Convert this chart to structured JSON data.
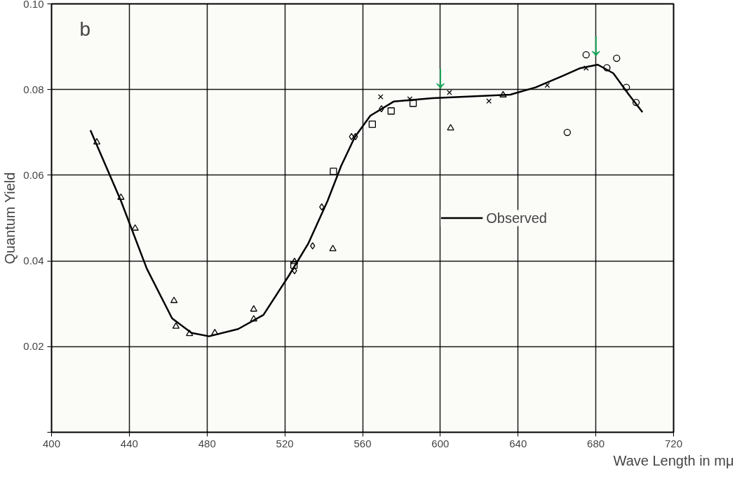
{
  "chart_data": {
    "type": "scatter",
    "xlabel": "Wave Length in mμ",
    "ylabel": "Quantum Yield",
    "xlim": [
      400,
      720
    ],
    "xticks": [
      400,
      440,
      480,
      520,
      560,
      600,
      640,
      680,
      720
    ],
    "ylim": [
      0,
      0.1
    ],
    "yticks": [
      {
        "value": 0,
        "label": null
      },
      0.02,
      0.04,
      0.06,
      0.08,
      {
        "value": 0.1,
        "label": "0.10"
      }
    ],
    "grid": true,
    "legend": "right",
    "annotations": [
      "b",
      {
        "text": "↓",
        "x": 600,
        "y": 0.0781
      },
      {
        "text": "↓",
        "x": 680,
        "y": 0.0857
      }
    ],
    "series": [
      {
        "name": "Observed",
        "type": "line",
        "color": "#000000",
        "marker": "none",
        "x": [
          420,
          435.7,
          449,
          462,
          472,
          481,
          496,
          509,
          522,
          532,
          542,
          549,
          556,
          564,
          576,
          596,
          622,
          636,
          649,
          662,
          672,
          681,
          689,
          697,
          704
        ],
        "values": [
          0.0705,
          0.054,
          0.0382,
          0.0266,
          0.0232,
          0.0224,
          0.0241,
          0.0274,
          0.0365,
          0.044,
          0.054,
          0.0622,
          0.0689,
          0.0739,
          0.0772,
          0.078,
          0.0785,
          0.0788,
          0.0805,
          0.083,
          0.085,
          0.0858,
          0.0838,
          0.0788,
          0.0747
        ]
      },
      {
        "color": "#000000",
        "marker": "triangle",
        "x": [
          423.3,
          435.7,
          443,
          463,
          471,
          504,
          525,
          605.3,
          632.3
        ],
        "values": [
          0.0677,
          0.0548,
          0.0476,
          0.0307,
          0.023,
          0.0287,
          0.0398,
          0.071,
          0.0787
        ]
      },
      {
        "color": "#000000",
        "marker": "triangle",
        "x": [
          464,
          484,
          504,
          544.7
        ],
        "values": [
          0.0247,
          0.0232,
          0.0264,
          0.0428
        ]
      },
      {
        "color": "#000000",
        "marker": "square",
        "x": [
          524.7,
          545,
          565,
          574.7,
          586
        ],
        "values": [
          0.039,
          0.0609,
          0.0719,
          0.075,
          0.0768
        ]
      },
      {
        "color": "#000000",
        "marker": "diamond",
        "x": [
          525,
          534.3,
          539,
          554.3,
          556.3,
          569.7
        ],
        "values": [
          0.0377,
          0.0435,
          0.0526,
          0.069,
          0.069,
          0.0755
        ]
      },
      {
        "color": "#000000",
        "marker": "x",
        "x": [
          569.3,
          584.3,
          604.7,
          625,
          655,
          675
        ],
        "values": [
          0.0783,
          0.0778,
          0.0793,
          0.0773,
          0.081,
          0.085
        ]
      },
      {
        "color": "#000000",
        "marker": "circle",
        "x": [
          665.3,
          675,
          685.7,
          690.7,
          695.7,
          700.7
        ],
        "values": [
          0.07,
          0.0881,
          0.0851,
          0.0873,
          0.0805,
          0.077
        ]
      }
    ]
  }
}
